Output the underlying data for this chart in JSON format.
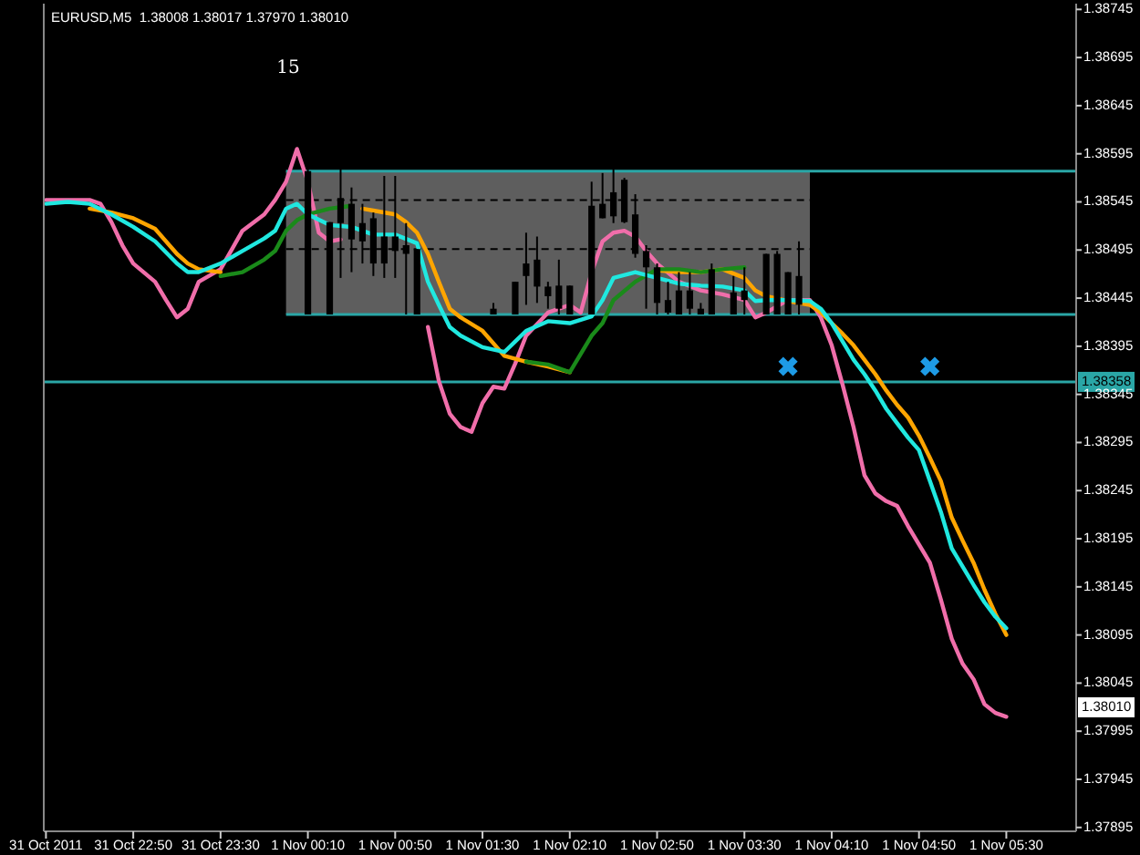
{
  "chart_data": {
    "type": "candlestick",
    "title": "EURUSD,M5  1.38008 1.38017 1.37970 1.38010",
    "xlim": [
      "2011-10-31T22:09",
      "2011-11-01T06:02"
    ],
    "xticks": [
      {
        "value": "2011-10-31T22:10",
        "label": "31 Oct 2011"
      },
      {
        "value": "2011-10-31T22:50",
        "label": "31 Oct 22:50"
      },
      {
        "value": "2011-10-31T23:30",
        "label": "31 Oct 23:30"
      },
      {
        "value": "2011-11-01T00:10",
        "label": "1 Nov 00:10"
      },
      {
        "value": "2011-11-01T00:50",
        "label": "1 Nov 00:50"
      },
      {
        "value": "2011-11-01T01:30",
        "label": "1 Nov 01:30"
      },
      {
        "value": "2011-11-01T02:10",
        "label": "1 Nov 02:10"
      },
      {
        "value": "2011-11-01T02:50",
        "label": "1 Nov 02:50"
      },
      {
        "value": "2011-11-01T03:30",
        "label": "1 Nov 03:30"
      },
      {
        "value": "2011-11-01T04:10",
        "label": "1 Nov 04:10"
      },
      {
        "value": "2011-11-01T04:50",
        "label": "1 Nov 04:50"
      },
      {
        "value": "2011-11-01T05:30",
        "label": "1 Nov 05:30"
      }
    ],
    "ylim": [
      1.37891,
      1.38751
    ],
    "yticks": [
      1.38745,
      1.38695,
      1.38645,
      1.38595,
      1.38545,
      1.38495,
      1.38445,
      1.38395,
      1.38345,
      1.38295,
      1.38245,
      1.38195,
      1.38145,
      1.38095,
      1.38045,
      1.37995,
      1.37945,
      1.37895
    ],
    "grid": false,
    "bands": [
      {
        "axis": "x",
        "from": "2011-11-01T00:00",
        "to": "2011-11-01T04:00",
        "color": "#5e5e5e"
      }
    ],
    "ref_lines": [
      {
        "axis": "y",
        "value": 1.38577,
        "color": "#2aa6a6"
      },
      {
        "axis": "y",
        "value": 1.38428,
        "color": "#2aa6a6"
      },
      {
        "axis": "y",
        "value": 1.38547,
        "color": "#000000",
        "line_style": "dashed"
      },
      {
        "axis": "y",
        "value": 1.38496,
        "color": "#000000",
        "line_style": "dashed"
      },
      {
        "axis": "y",
        "value": 1.38358,
        "label": "1.38358",
        "color": "#2aa6a6"
      }
    ],
    "annotations": [
      "15",
      "1.38010"
    ],
    "series": [
      {
        "type": "line",
        "color": "#f06eaa",
        "x": [
          "2011-10-31T22:10",
          "2011-10-31T22:20",
          "2011-10-31T22:30",
          "2011-10-31T22:35",
          "2011-10-31T22:40",
          "2011-10-31T22:45",
          "2011-10-31T22:50",
          "2011-10-31T23:00",
          "2011-10-31T23:05",
          "2011-10-31T23:10",
          "2011-10-31T23:15",
          "2011-10-31T23:20",
          "2011-10-31T23:30",
          "2011-10-31T23:40",
          "2011-10-31T23:50",
          "2011-10-31T23:55",
          "2011-11-01T00:00",
          "2011-11-01T00:05",
          "2011-11-01T00:10",
          "2011-11-01T00:15",
          "2011-11-01T00:20",
          "2011-11-01T00:25",
          "2011-11-01T00:30",
          "2011-11-01T01:00",
          "2011-11-01T01:05",
          "2011-11-01T01:10",
          "2011-11-01T01:15",
          "2011-11-01T01:20",
          "2011-11-01T01:25",
          "2011-11-01T01:30",
          "2011-11-01T01:35",
          "2011-11-01T01:40",
          "2011-11-01T01:45",
          "2011-11-01T01:50",
          "2011-11-01T02:00",
          "2011-11-01T02:10",
          "2011-11-01T02:15",
          "2011-11-01T02:20",
          "2011-11-01T02:25",
          "2011-11-01T02:30",
          "2011-11-01T02:35",
          "2011-11-01T02:40",
          "2011-11-01T02:45",
          "2011-11-01T02:50",
          "2011-11-01T03:00",
          "2011-11-01T03:10",
          "2011-11-01T03:20",
          "2011-11-01T03:30",
          "2011-11-01T03:35",
          "2011-11-01T03:40",
          "2011-11-01T03:50",
          "2011-11-01T04:00",
          "2011-11-01T04:05",
          "2011-11-01T04:10",
          "2011-11-01T04:15",
          "2011-11-01T04:20",
          "2011-11-01T04:25",
          "2011-11-01T04:30",
          "2011-11-01T04:35",
          "2011-11-01T04:40",
          "2011-11-01T04:45",
          "2011-11-01T04:50",
          "2011-11-01T04:55",
          "2011-11-01T05:00",
          "2011-11-01T05:05",
          "2011-11-01T05:10",
          "2011-11-01T05:15",
          "2011-11-01T05:20",
          "2011-11-01T05:25",
          "2011-11-01T05:30"
        ],
        "values": [
          1.38547,
          1.38547,
          1.38547,
          1.38543,
          1.38524,
          1.385,
          1.38481,
          1.38462,
          1.38443,
          1.38425,
          1.38434,
          1.38462,
          1.38475,
          1.38515,
          1.38532,
          1.38547,
          1.38566,
          1.386,
          1.38566,
          1.38513,
          1.38504,
          1.38506,
          null,
          null,
          1.38415,
          1.38359,
          1.38325,
          1.38311,
          1.38306,
          1.38336,
          1.38353,
          1.38351,
          1.38377,
          1.38406,
          1.3843,
          1.38438,
          1.3843,
          1.38472,
          1.38504,
          1.38513,
          1.38515,
          1.38509,
          1.38494,
          1.38481,
          1.38462,
          1.38453,
          1.38449,
          1.38443,
          1.38425,
          1.3843,
          1.38443,
          1.38443,
          1.38425,
          1.38396,
          1.38355,
          1.38311,
          1.38261,
          1.38242,
          1.38234,
          1.38229,
          1.38208,
          1.38189,
          1.3817,
          1.38132,
          1.38091,
          1.38065,
          1.38049,
          1.38023,
          1.38014,
          1.3801
        ]
      },
      {
        "type": "line",
        "color": "#ffa500",
        "x": [
          "2011-10-31T22:30",
          "2011-10-31T22:40",
          "2011-10-31T22:50",
          "2011-10-31T23:00",
          "2011-10-31T23:10",
          "2011-10-31T23:15",
          "2011-10-31T23:20",
          "2011-10-31T23:30",
          "2011-10-31T23:40",
          "2011-11-01T00:35",
          "2011-11-01T00:40",
          "2011-11-01T00:50",
          "2011-11-01T00:55",
          "2011-11-01T01:00",
          "2011-11-01T01:05",
          "2011-11-01T01:10",
          "2011-11-01T01:15",
          "2011-11-01T01:20",
          "2011-11-01T01:30",
          "2011-11-01T01:40",
          "2011-11-01T01:50",
          "2011-11-01T02:00",
          "2011-11-01T02:10",
          "2011-11-01T02:15",
          "2011-11-01T02:50",
          "2011-11-01T03:00",
          "2011-11-01T03:10",
          "2011-11-01T03:20",
          "2011-11-01T03:30",
          "2011-11-01T03:35",
          "2011-11-01T03:40",
          "2011-11-01T03:50",
          "2011-11-01T04:00",
          "2011-11-01T04:05",
          "2011-11-01T04:10",
          "2011-11-01T04:15",
          "2011-11-01T04:20",
          "2011-11-01T04:25",
          "2011-11-01T04:30",
          "2011-11-01T04:35",
          "2011-11-01T04:40",
          "2011-11-01T04:45",
          "2011-11-01T04:50",
          "2011-11-01T04:55",
          "2011-11-01T05:00",
          "2011-11-01T05:05",
          "2011-11-01T05:10",
          "2011-11-01T05:15",
          "2011-11-01T05:20",
          "2011-11-01T05:25",
          "2011-11-01T05:30"
        ],
        "values": [
          1.38538,
          1.38534,
          1.38528,
          1.38517,
          1.38491,
          1.38481,
          1.38475,
          1.38472,
          null,
          1.38538,
          1.38536,
          1.38532,
          1.38524,
          1.38513,
          1.38491,
          1.38462,
          1.38434,
          1.38425,
          1.38411,
          1.38385,
          1.38379,
          1.38374,
          1.38368,
          null,
          1.38474,
          1.38472,
          1.38472,
          1.38475,
          1.38466,
          1.38453,
          1.38447,
          1.38442,
          1.38438,
          1.3843,
          1.38419,
          1.38408,
          1.38396,
          1.38381,
          1.38366,
          1.38349,
          1.38334,
          1.38321,
          1.38302,
          1.38279,
          1.38255,
          1.38217,
          1.38193,
          1.3817,
          1.38142,
          1.38117,
          1.38095
        ]
      },
      {
        "type": "line",
        "color": "#1a8a1a",
        "x": [
          "2011-10-31T23:30",
          "2011-10-31T23:40",
          "2011-10-31T23:50",
          "2011-10-31T23:55",
          "2011-11-01T00:00",
          "2011-11-01T00:05",
          "2011-11-01T00:10",
          "2011-11-01T00:20",
          "2011-11-01T00:30",
          "2011-11-01T00:35",
          "2011-11-01T01:50",
          "2011-11-01T02:00",
          "2011-11-01T02:10",
          "2011-11-01T02:15",
          "2011-11-01T02:20",
          "2011-11-01T02:25",
          "2011-11-01T02:30",
          "2011-11-01T02:40",
          "2011-11-01T02:50",
          "2011-11-01T03:00",
          "2011-11-01T03:10",
          "2011-11-01T03:20",
          "2011-11-01T03:30"
        ],
        "values": [
          1.38468,
          1.38472,
          1.38485,
          1.38494,
          1.38515,
          1.38526,
          1.38532,
          1.38538,
          1.38541,
          null,
          1.38379,
          1.38376,
          1.38368,
          1.38387,
          1.38406,
          1.38419,
          1.38443,
          1.38462,
          1.38475,
          1.38475,
          1.38472,
          1.38475,
          1.38477
        ]
      },
      {
        "type": "line",
        "color": "#20e8e0",
        "x": [
          "2011-10-31T22:10",
          "2011-10-31T22:20",
          "2011-10-31T22:30",
          "2011-10-31T22:40",
          "2011-10-31T22:50",
          "2011-10-31T23:00",
          "2011-10-31T23:10",
          "2011-10-31T23:15",
          "2011-10-31T23:20",
          "2011-10-31T23:30",
          "2011-10-31T23:40",
          "2011-10-31T23:50",
          "2011-10-31T23:55",
          "2011-11-01T00:00",
          "2011-11-01T00:05",
          "2011-11-01T00:10",
          "2011-11-01T00:20",
          "2011-11-01T00:30",
          "2011-11-01T00:40",
          "2011-11-01T00:50",
          "2011-11-01T01:00",
          "2011-11-01T01:05",
          "2011-11-01T01:10",
          "2011-11-01T01:15",
          "2011-11-01T01:20",
          "2011-11-01T01:30",
          "2011-11-01T01:40",
          "2011-11-01T01:45",
          "2011-11-01T01:50",
          "2011-11-01T02:00",
          "2011-11-01T02:10",
          "2011-11-01T02:20",
          "2011-11-01T02:25",
          "2011-11-01T02:30",
          "2011-11-01T02:40",
          "2011-11-01T02:50",
          "2011-11-01T03:00",
          "2011-11-01T03:10",
          "2011-11-01T03:20",
          "2011-11-01T03:30",
          "2011-11-01T03:35",
          "2011-11-01T03:40",
          "2011-11-01T03:50",
          "2011-11-01T04:00",
          "2011-11-01T04:05",
          "2011-11-01T04:10",
          "2011-11-01T04:15",
          "2011-11-01T04:20",
          "2011-11-01T04:25",
          "2011-11-01T04:30",
          "2011-11-01T04:35",
          "2011-11-01T04:40",
          "2011-11-01T04:45",
          "2011-11-01T04:50",
          "2011-11-01T04:55",
          "2011-11-01T05:00",
          "2011-11-01T05:05",
          "2011-11-01T05:10",
          "2011-11-01T05:15",
          "2011-11-01T05:20",
          "2011-11-01T05:25",
          "2011-11-01T05:30"
        ],
        "values": [
          1.38543,
          1.38545,
          1.38543,
          1.38532,
          1.38519,
          1.38504,
          1.38481,
          1.38472,
          1.38472,
          1.38481,
          1.38494,
          1.38507,
          1.38515,
          1.38538,
          1.38543,
          1.38532,
          1.38521,
          1.38519,
          1.38511,
          1.38511,
          1.38502,
          1.38462,
          1.38438,
          1.38415,
          1.38406,
          1.38394,
          1.38389,
          1.384,
          1.38411,
          1.38421,
          1.38419,
          1.38426,
          1.38443,
          1.38466,
          1.38472,
          1.38466,
          1.3846,
          1.38458,
          1.38457,
          1.38453,
          1.38442,
          1.38443,
          1.38443,
          1.38442,
          1.38434,
          1.38419,
          1.384,
          1.38381,
          1.38366,
          1.38349,
          1.3833,
          1.38315,
          1.383,
          1.38287,
          1.38255,
          1.38223,
          1.38185,
          1.38166,
          1.38147,
          1.38129,
          1.38114,
          1.38102
        ]
      },
      {
        "color": "#000000",
        "x": [
          "2011-11-01T00:10",
          "2011-11-01T00:20",
          "2011-11-01T00:25",
          "2011-11-01T00:30",
          "2011-11-01T00:35",
          "2011-11-01T00:40",
          "2011-11-01T00:45",
          "2011-11-01T00:50",
          "2011-11-01T00:55",
          "2011-11-01T01:00",
          "2011-11-01T01:35",
          "2011-11-01T01:45",
          "2011-11-01T01:50",
          "2011-11-01T01:55",
          "2011-11-01T02:00",
          "2011-11-01T02:05",
          "2011-11-01T02:10",
          "2011-11-01T02:20",
          "2011-11-01T02:25",
          "2011-11-01T02:30",
          "2011-11-01T02:35",
          "2011-11-01T02:40",
          "2011-11-01T02:45",
          "2011-11-01T02:50",
          "2011-11-01T02:55",
          "2011-11-01T03:00",
          "2011-11-01T03:05",
          "2011-11-01T03:10",
          "2011-11-01T03:15",
          "2011-11-01T03:25",
          "2011-11-01T03:30",
          "2011-11-01T03:40",
          "2011-11-01T03:45",
          "2011-11-01T03:50",
          "2011-11-01T03:55"
        ],
        "ohlc": [
          [
            1.38577,
            1.38579,
            1.38428,
            1.38428
          ],
          [
            1.38524,
            1.38524,
            1.38428,
            1.38428
          ],
          [
            1.38549,
            1.38579,
            1.38466,
            1.38523
          ],
          [
            1.38543,
            1.3856,
            1.38472,
            1.38506
          ],
          [
            1.38523,
            1.38543,
            1.38481,
            1.38504
          ],
          [
            1.38528,
            1.38534,
            1.38468,
            1.38481
          ],
          [
            1.38509,
            1.38572,
            1.38466,
            1.38481
          ],
          [
            1.38509,
            1.38572,
            1.38466,
            1.38494
          ],
          [
            1.385,
            1.38523,
            1.38428,
            1.38491
          ],
          [
            1.38496,
            1.38496,
            1.38428,
            1.38428
          ],
          [
            1.38434,
            1.3844,
            1.38428,
            1.38428
          ],
          [
            1.38462,
            1.38462,
            1.38428,
            1.38428
          ],
          [
            1.38481,
            1.38513,
            1.38438,
            1.38468
          ],
          [
            1.38485,
            1.38509,
            1.3844,
            1.38457
          ],
          [
            1.38457,
            1.38462,
            1.38434,
            1.38447
          ],
          [
            1.38458,
            1.38485,
            1.38428,
            1.38434
          ],
          [
            1.38458,
            1.38458,
            1.38428,
            1.38428
          ],
          [
            1.38541,
            1.38566,
            1.38428,
            1.38428
          ],
          [
            1.38543,
            1.38575,
            1.38528,
            1.38528
          ],
          [
            1.38555,
            1.38579,
            1.38523,
            1.3853
          ],
          [
            1.38568,
            1.3857,
            1.38523,
            1.38524
          ],
          [
            1.38532,
            1.38553,
            1.38487,
            1.38491
          ],
          [
            1.38494,
            1.385,
            1.38434,
            1.38477
          ],
          [
            1.38477,
            1.38481,
            1.38428,
            1.3844
          ],
          [
            1.38443,
            1.38462,
            1.38428,
            1.3843
          ],
          [
            1.38453,
            1.38472,
            1.38428,
            1.38428
          ],
          [
            1.38453,
            1.38472,
            1.38428,
            1.38434
          ],
          [
            1.38434,
            1.3844,
            1.38428,
            1.38428
          ],
          [
            1.38475,
            1.38481,
            1.38428,
            1.38428
          ],
          [
            1.38451,
            1.38468,
            1.38428,
            1.38428
          ],
          [
            1.38453,
            1.38477,
            1.38428,
            1.38443
          ],
          [
            1.38491,
            1.38491,
            1.38428,
            1.38428
          ],
          [
            1.38491,
            1.38494,
            1.38428,
            1.38428
          ],
          [
            1.38472,
            1.38472,
            1.38428,
            1.38428
          ],
          [
            1.38468,
            1.38504,
            1.38428,
            1.38438
          ]
        ]
      },
      {
        "type": "scatter",
        "color": "#1e9be6",
        "marker": "cross",
        "x": [
          "2011-11-01T03:50",
          "2011-11-01T04:55"
        ],
        "values": [
          1.38374,
          1.38374
        ]
      }
    ]
  }
}
